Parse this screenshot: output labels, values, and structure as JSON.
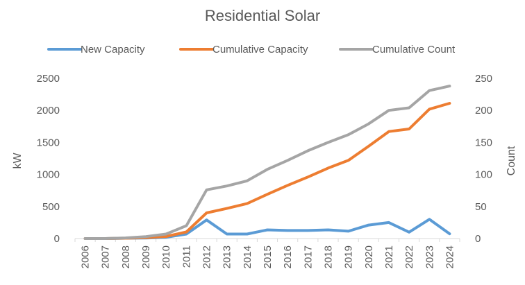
{
  "chart_data": {
    "type": "line",
    "title": "Residential Solar",
    "xlabel": "",
    "ylabel": "kW",
    "y2label": "Count",
    "legend_position": "top",
    "grid": false,
    "ylim": [
      0,
      2500
    ],
    "y2lim": [
      0,
      250
    ],
    "y_ticks": [
      0,
      500,
      1000,
      1500,
      2000,
      2500
    ],
    "y2_ticks": [
      0,
      50,
      100,
      150,
      200,
      250
    ],
    "categories": [
      "2006",
      "2007",
      "2008",
      "2009",
      "2010",
      "2011",
      "2012",
      "2013",
      "2014",
      "2015",
      "2016",
      "2017",
      "2018",
      "2019",
      "2020",
      "2021",
      "2022",
      "2023",
      "2024"
    ],
    "series": [
      {
        "name": "New Capacity",
        "axis": "left",
        "color": "#5B9BD5",
        "values": [
          0,
          0,
          5,
          8,
          20,
          70,
          290,
          70,
          70,
          135,
          125,
          125,
          135,
          115,
          210,
          250,
          100,
          300,
          75
        ]
      },
      {
        "name": "Cumulative Capacity",
        "axis": "left",
        "color": "#ED7D31",
        "values": [
          0,
          0,
          5,
          13,
          33,
          103,
          400,
          470,
          545,
          690,
          830,
          960,
          1100,
          1220,
          1440,
          1670,
          1710,
          2020,
          2110
        ]
      },
      {
        "name": "Cumulative Count",
        "axis": "right",
        "color": "#A5A5A5",
        "values": [
          0,
          0,
          1,
          3,
          7,
          20,
          76,
          82,
          90,
          108,
          122,
          137,
          150,
          162,
          179,
          200,
          204,
          231,
          238
        ]
      }
    ]
  }
}
